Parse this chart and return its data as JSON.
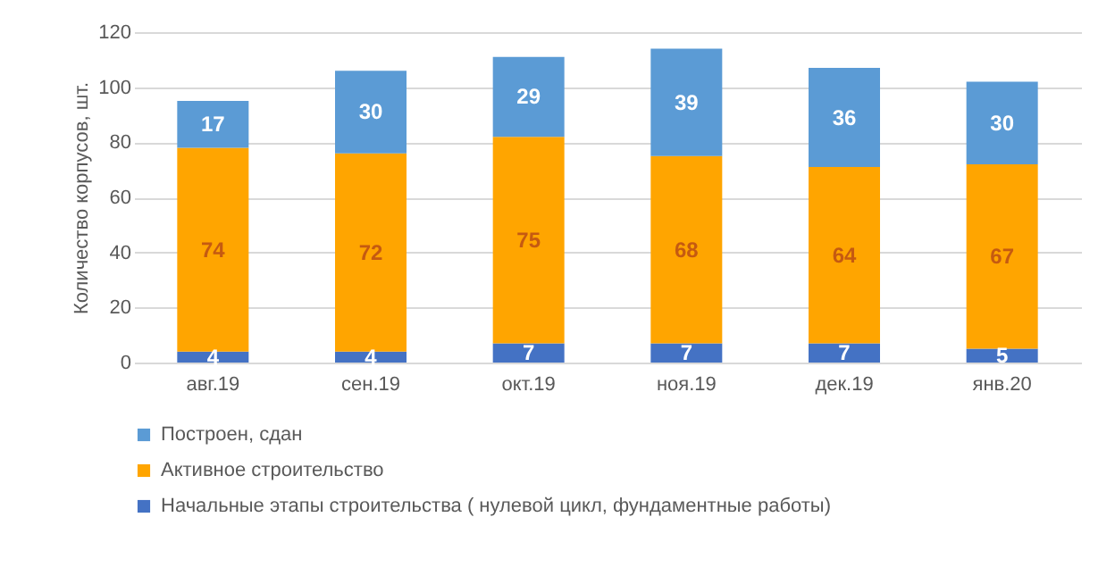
{
  "chart_data": {
    "type": "bar",
    "stacked": true,
    "ylabel": "Количество корпусов, шт.",
    "categories": [
      "авг.19",
      "сен.19",
      "окт.19",
      "ноя.19",
      "дек.19",
      "янв.20"
    ],
    "series": [
      {
        "name": "Начальные этапы строительства ( нулевой цикл, фундаментные работы)",
        "color": "#4472c4",
        "values": [
          4,
          4,
          7,
          7,
          7,
          5
        ]
      },
      {
        "name": "Активное строительство",
        "color": "#ffa500",
        "values": [
          74,
          72,
          75,
          68,
          64,
          67
        ]
      },
      {
        "name": "Построен, сдан",
        "color": "#5b9bd5",
        "values": [
          17,
          30,
          29,
          39,
          36,
          30
        ]
      }
    ],
    "ylim": [
      0,
      120
    ],
    "yticks": [
      0,
      20,
      40,
      60,
      80,
      100,
      120
    ],
    "grid": "y",
    "legend": "bottom",
    "data_labels": true
  }
}
